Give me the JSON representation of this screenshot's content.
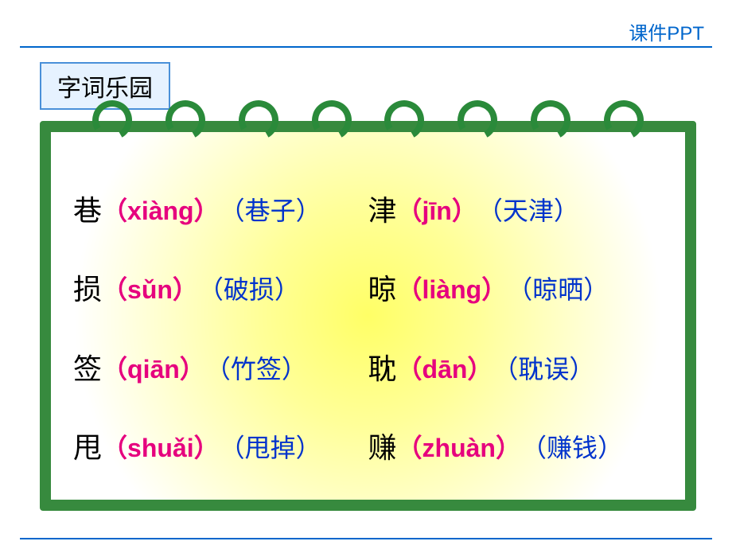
{
  "header": {
    "label": "课件PPT"
  },
  "title": "字词乐园",
  "colors": {
    "accent_blue": "#0066cc",
    "title_bg": "#e6f2ff",
    "title_border": "#4a90d9",
    "board_border": "#378a3e",
    "spiral": "#2a8a3a",
    "gradient_inner": "#ffff66",
    "gradient_outer": "#ffffff",
    "char_color": "#000000",
    "pinyin_color": "#e6007e",
    "word_color": "#0033cc"
  },
  "typography": {
    "header_fontsize": 24,
    "title_fontsize": 30,
    "entry_fontsize": 32,
    "char_fontsize": 36,
    "pinyin_weight": "bold"
  },
  "layout": {
    "columns": 2,
    "rows": 4,
    "spiral_count": 8
  },
  "entries": [
    {
      "char": "巷",
      "pinyin": "（xiàng）",
      "word": "（巷子）"
    },
    {
      "char": "津",
      "pinyin": "（jīn）",
      "word": "（天津）"
    },
    {
      "char": "损",
      "pinyin": "（sǔn）",
      "word": "（破损）"
    },
    {
      "char": "晾",
      "pinyin": "（liàng）",
      "word": "（晾晒）"
    },
    {
      "char": "签",
      "pinyin": "（qiān）",
      "word": "（竹签）"
    },
    {
      "char": "耽",
      "pinyin": "（dān）",
      "word": "（耽误）"
    },
    {
      "char": "甩",
      "pinyin": "（shuǎi）",
      "word": "（甩掉）"
    },
    {
      "char": "赚",
      "pinyin": "（zhuàn）",
      "word": "（赚钱）"
    }
  ]
}
